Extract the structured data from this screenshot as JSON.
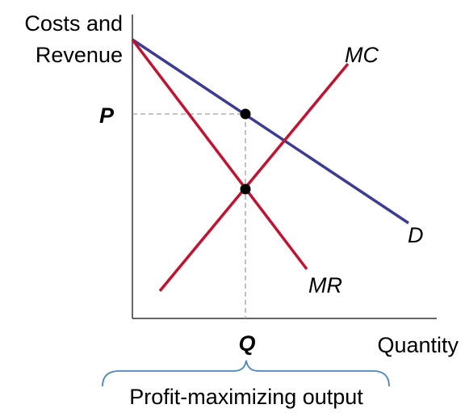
{
  "axes": {
    "y_title_line1": "Costs and",
    "y_title_line2": "Revenue",
    "x_title": "Quantity"
  },
  "ticks": {
    "price": "P",
    "quantity": "Q"
  },
  "curves": [
    {
      "id": "demand",
      "label": "D",
      "color": "#3b3b98"
    },
    {
      "id": "marginal-revenue",
      "label": "MR",
      "color": "#c8102e"
    },
    {
      "id": "marginal-cost",
      "label": "MC",
      "color": "#c8102e"
    }
  ],
  "brace": {
    "label": "Profit-maximizing output",
    "color": "#4a86c5"
  },
  "guide_color": "#a0a0a0"
}
